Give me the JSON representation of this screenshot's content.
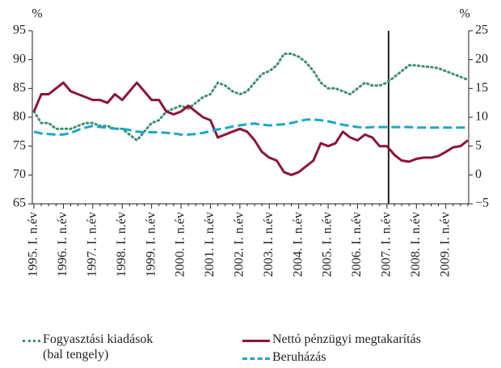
{
  "chart_data": {
    "type": "line",
    "ylabel": "%",
    "y2label": "%",
    "categories": [
      "1995. I. n.év",
      null,
      null,
      null,
      "1996. I. n.év",
      null,
      null,
      null,
      "1997. I. n.év",
      null,
      null,
      null,
      "1998. I. n.év",
      null,
      null,
      null,
      "1999. I. n.év",
      null,
      null,
      null,
      "2000. I. n.év",
      null,
      null,
      null,
      "2001. I. n.év",
      null,
      null,
      null,
      "2002. I. n.év",
      null,
      null,
      null,
      "2003. I. n.év",
      null,
      null,
      null,
      "2004. I. n.év",
      null,
      null,
      null,
      "2005. I. n.év",
      null,
      null,
      null,
      "2006. I. n.év",
      null,
      null,
      null,
      "2007. I. n.év",
      null,
      null,
      null,
      "2008. I. n.év",
      null,
      null,
      null,
      "2009. I. n.év",
      null,
      null,
      null
    ],
    "reference_line": {
      "x": "2007. I. n.év"
    },
    "ylim": [
      65,
      95
    ],
    "yticks": [
      65,
      70,
      75,
      80,
      85,
      90,
      95
    ],
    "y2lim": [
      -5,
      25
    ],
    "y2ticks": [
      {
        "value": -5,
        "label": "−5"
      },
      0,
      5,
      10,
      15,
      20,
      25
    ],
    "series": [
      {
        "name": "Fogyasztási kiadások (bal tengely)",
        "color": "#3f8f6f",
        "style": "dotted",
        "values": [
          81,
          79,
          79,
          78,
          78,
          78,
          78.5,
          79,
          79,
          78.5,
          78.5,
          78,
          78,
          77,
          76,
          77.5,
          79,
          79.5,
          81,
          81.5,
          82,
          81.5,
          82.5,
          83.5,
          84,
          86,
          85.5,
          84.5,
          84,
          84.5,
          86,
          87.5,
          88,
          89,
          91,
          91,
          90.5,
          89.5,
          88,
          86,
          85,
          85,
          84.5,
          84,
          85,
          86,
          85.5,
          85.5,
          86,
          87,
          88,
          89,
          89,
          88.8,
          88.7,
          88.5,
          88,
          87.5,
          87,
          86.5
        ]
      },
      {
        "name": "Nettó pénzügyi megtakarítás",
        "color": "#8b1538",
        "style": "solid",
        "axis": "y2",
        "values": [
          11,
          14,
          14,
          15,
          16,
          14.5,
          14,
          13.5,
          13,
          13,
          12.5,
          14,
          13,
          14.5,
          16,
          14.5,
          13,
          13,
          11,
          10.5,
          11,
          12,
          11,
          10,
          9.5,
          6.5,
          7,
          7.5,
          8,
          7.5,
          6,
          4,
          3,
          2.5,
          0.5,
          0,
          0.5,
          1.5,
          2.5,
          5.5,
          5,
          5.5,
          7.5,
          6.5,
          6,
          7,
          6.5,
          5,
          5,
          3.5,
          2.5,
          2.3,
          2.8,
          3,
          3,
          3.3,
          4,
          4.8,
          5,
          6
        ]
      },
      {
        "name": "Beruházás",
        "color": "#1ba8c9",
        "style": "dashed",
        "axis": "y2",
        "values": [
          7.5,
          7.2,
          7.1,
          7,
          7,
          7.3,
          7.8,
          8.2,
          8.5,
          8.3,
          8.2,
          8,
          8,
          7.8,
          7.5,
          7.4,
          7.4,
          7.4,
          7.3,
          7.2,
          7,
          7,
          7.1,
          7.3,
          7.6,
          7.9,
          8.1,
          8.4,
          8.6,
          8.8,
          8.9,
          8.7,
          8.6,
          8.7,
          8.8,
          9,
          9.3,
          9.6,
          9.6,
          9.5,
          9.3,
          9,
          8.7,
          8.5,
          8.3,
          8.2,
          8.3,
          8.3,
          8.3,
          8.3,
          8.3,
          8.3,
          8.2,
          8.2,
          8.2,
          8.2,
          8.2,
          8.2,
          8.2,
          8.2
        ]
      }
    ]
  }
}
